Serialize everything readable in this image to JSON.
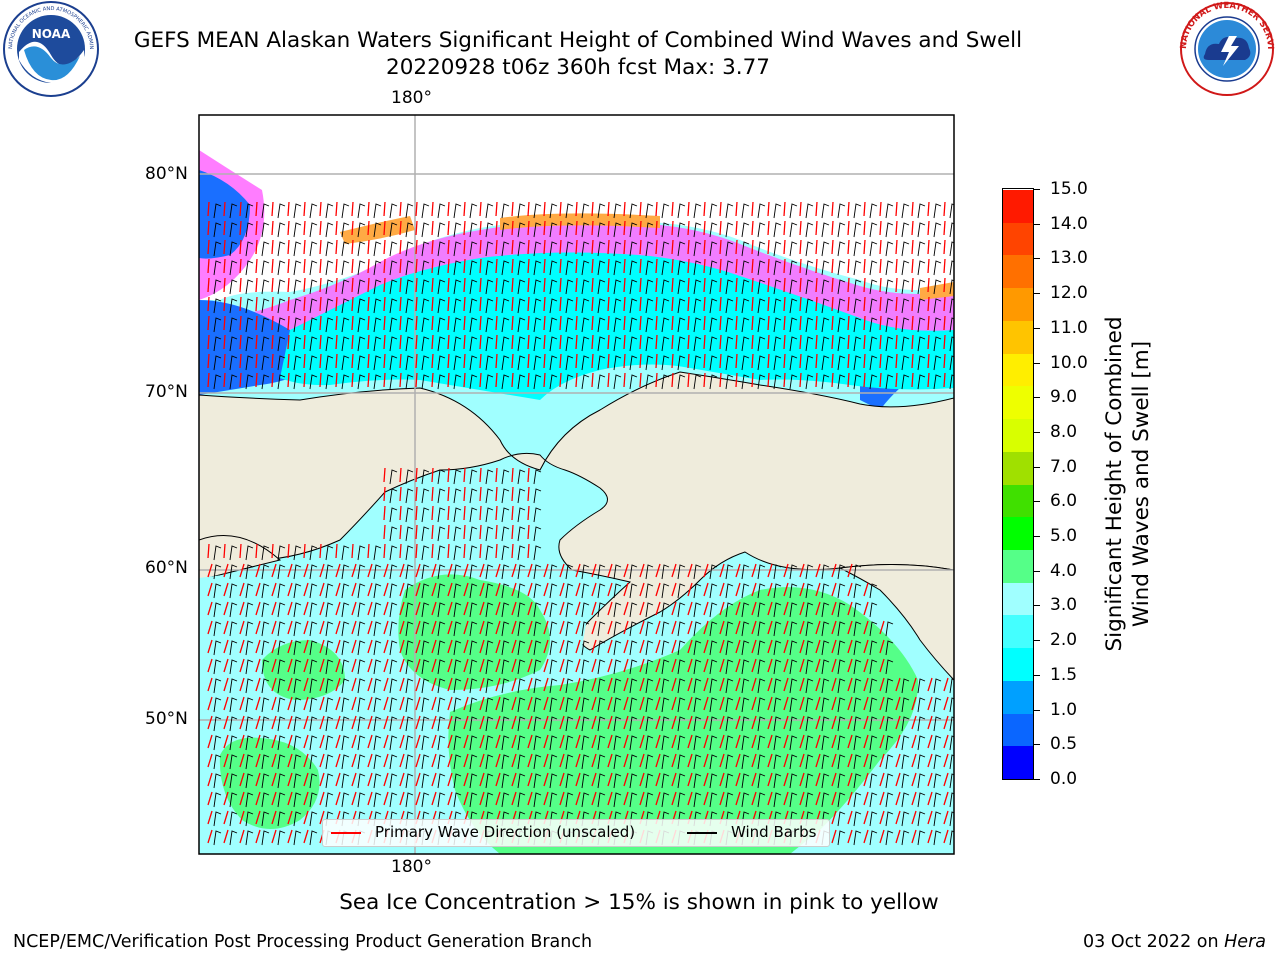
{
  "title": {
    "line1": "GEFS MEAN Alaskan Waters Significant Height of Combined Wind Waves and Swell",
    "line2": "20220928 t06z 360h fcst   Max: 3.77"
  },
  "logos": {
    "left": {
      "name": "NOAA",
      "ring_text": "NATIONAL OCEANIC AND ATMOSPHERIC ADMINISTRATION · U.S. DEPARTMENT OF COMMERCE"
    },
    "right": {
      "name": "NATIONAL WEATHER SERVICE"
    }
  },
  "map": {
    "lon_labels": [
      "180°",
      "180°"
    ],
    "lat_labels": [
      "80°N",
      "70°N",
      "60°N",
      "50°N"
    ],
    "land_color": "#efecdc",
    "gridline_color": "#b0b0b0"
  },
  "legend": {
    "wave_label": "Primary Wave Direction (unscaled)",
    "wave_color": "#ff0000",
    "barb_label": "Wind Barbs",
    "barb_color": "#000000"
  },
  "colorbar": {
    "label_line1": "Significant Height of Combined",
    "label_line2": "Wind Waves and Swell [m]",
    "ticks": [
      "15.0",
      "14.0",
      "13.0",
      "12.0",
      "11.0",
      "10.0",
      "9.0",
      "8.0",
      "7.0",
      "6.0",
      "5.0",
      "4.0",
      "3.0",
      "2.0",
      "1.5",
      "1.0",
      "0.5",
      "0.0"
    ],
    "colors_bottom_to_top": [
      "#0000ff",
      "#0a66ff",
      "#00a0ff",
      "#00ffff",
      "#44ffff",
      "#a0ffff",
      "#55ff88",
      "#00ff00",
      "#40e000",
      "#a0e000",
      "#d8ff00",
      "#eeff00",
      "#ffee00",
      "#ffc400",
      "#ff9900",
      "#ff7000",
      "#ff4400",
      "#ff1a00"
    ]
  },
  "caption": "Sea Ice Concentration > 15% is shown in pink to yellow",
  "footer": {
    "left": "NCEP/EMC/Verification Post Processing Product Generation Branch",
    "right_date": "03 Oct 2022 on ",
    "right_host": "Hera"
  }
}
